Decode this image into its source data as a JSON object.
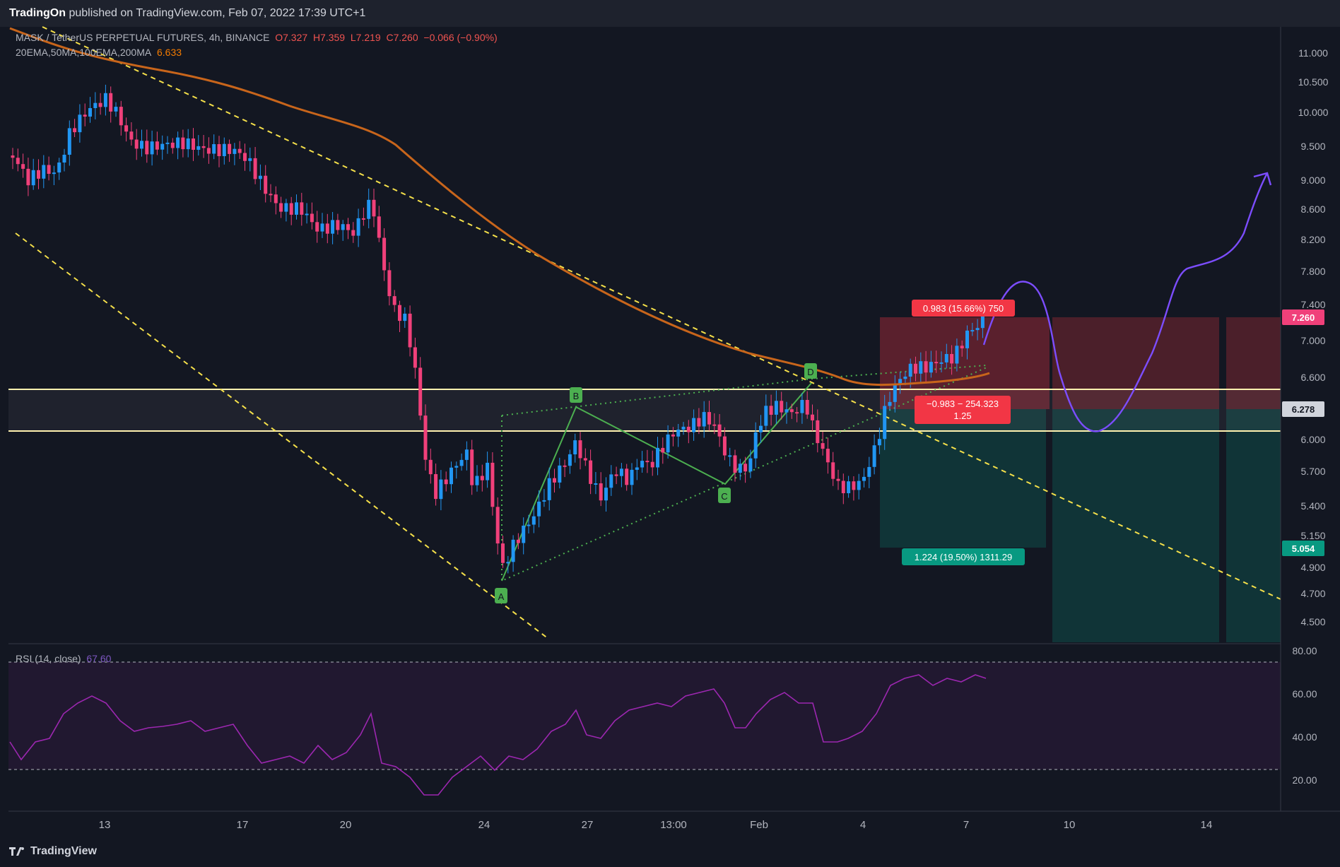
{
  "header": {
    "publisher": "TradingOn",
    "published_text": "published on TradingView.com, Feb 07, 2022 17:39 UTC+1"
  },
  "legend": {
    "symbol": "MASK / TetherUS PERPETUAL FUTURES, 4h, BINANCE",
    "open": "O7.327",
    "high": "H7.359",
    "low": "L7.219",
    "close": "C7.260",
    "change": "−0.066 (−0.90%)",
    "ma_label": "20EMA,50MA,100EMA,200MA",
    "ma_value": "6.633",
    "rsi_label": "RSI (14, close)",
    "rsi_value": "67.60"
  },
  "price_axis": {
    "ticks": [
      "11.000",
      "10.500",
      "10.000",
      "9.500",
      "9.000",
      "8.600",
      "8.200",
      "7.800",
      "7.400",
      "7.000",
      "6.600",
      "6.000",
      "5.700",
      "5.400",
      "5.150",
      "4.900",
      "4.700",
      "4.500"
    ],
    "current_price": "7.260",
    "stop_label": "6.278",
    "target_label": "5.054"
  },
  "rsi_axis": {
    "ticks": [
      "80.00",
      "60.00",
      "40.00",
      "20.00"
    ]
  },
  "time_axis": {
    "ticks": [
      "13",
      "17",
      "20",
      "24",
      "27",
      "13:00",
      "Feb",
      "4",
      "7",
      "10",
      "14"
    ]
  },
  "pattern_labels": [
    "A",
    "B",
    "C",
    "D"
  ],
  "position": {
    "risk_label": "0.983 (15.66%) 750",
    "ratio_line1": "−0.983 − 254.323",
    "ratio_line2": "1.25",
    "reward_label": "1.224 (19.50%) 1311.29"
  },
  "colors": {
    "background": "#131722",
    "up_candle": "#2196f3",
    "down_candle": "#f0407a",
    "ma": "#c8651b",
    "trend": "#f5e04a",
    "pattern": "#4caf50",
    "projection": "#7c4dff",
    "rsi": "#9c27b0",
    "stop_zone": "#f23645",
    "target_zone": "#0c6b5f"
  },
  "footer": {
    "brand": "TradingView"
  }
}
